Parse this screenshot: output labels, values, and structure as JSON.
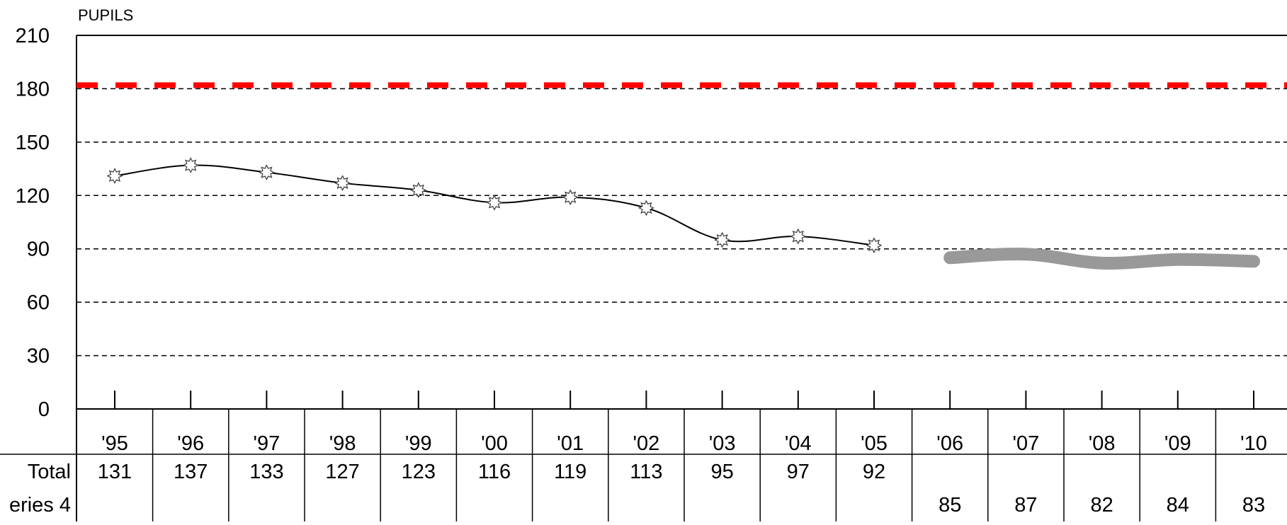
{
  "chart_data": {
    "type": "line",
    "ylabel": "PUPILS",
    "ylim": [
      0,
      210
    ],
    "yticks": [
      "0",
      "30",
      "60",
      "90",
      "120",
      "150",
      "180",
      "210"
    ],
    "categories": [
      "'95",
      "'96",
      "'97",
      "'98",
      "'99",
      "'00",
      "'01",
      "'02",
      "'03",
      "'04",
      "'05",
      "'06",
      "'07",
      "'08",
      "'09",
      "'10"
    ],
    "reference_line": {
      "value": 182,
      "color": "#ff0000",
      "style": "dashed"
    },
    "grid": "horizontal dashed",
    "series": [
      {
        "name": "Total",
        "values": [
          131,
          137,
          133,
          127,
          123,
          116,
          119,
          113,
          95,
          97,
          92,
          null,
          null,
          null,
          null,
          null
        ],
        "labels": [
          "131",
          "137",
          "133",
          "127",
          "123",
          "116",
          "119",
          "113",
          "95",
          "97",
          "92",
          "",
          "",
          "",
          "",
          ""
        ],
        "color": "#000000",
        "marker": "star"
      },
      {
        "name": "eries 4",
        "values": [
          null,
          null,
          null,
          null,
          null,
          null,
          null,
          null,
          null,
          null,
          null,
          85,
          87,
          82,
          84,
          83
        ],
        "labels": [
          "",
          "",
          "",
          "",
          "",
          "",
          "",
          "",
          "",
          "",
          "",
          "85",
          "87",
          "82",
          "84",
          "83"
        ],
        "color": "#999999",
        "marker": "none"
      }
    ]
  }
}
